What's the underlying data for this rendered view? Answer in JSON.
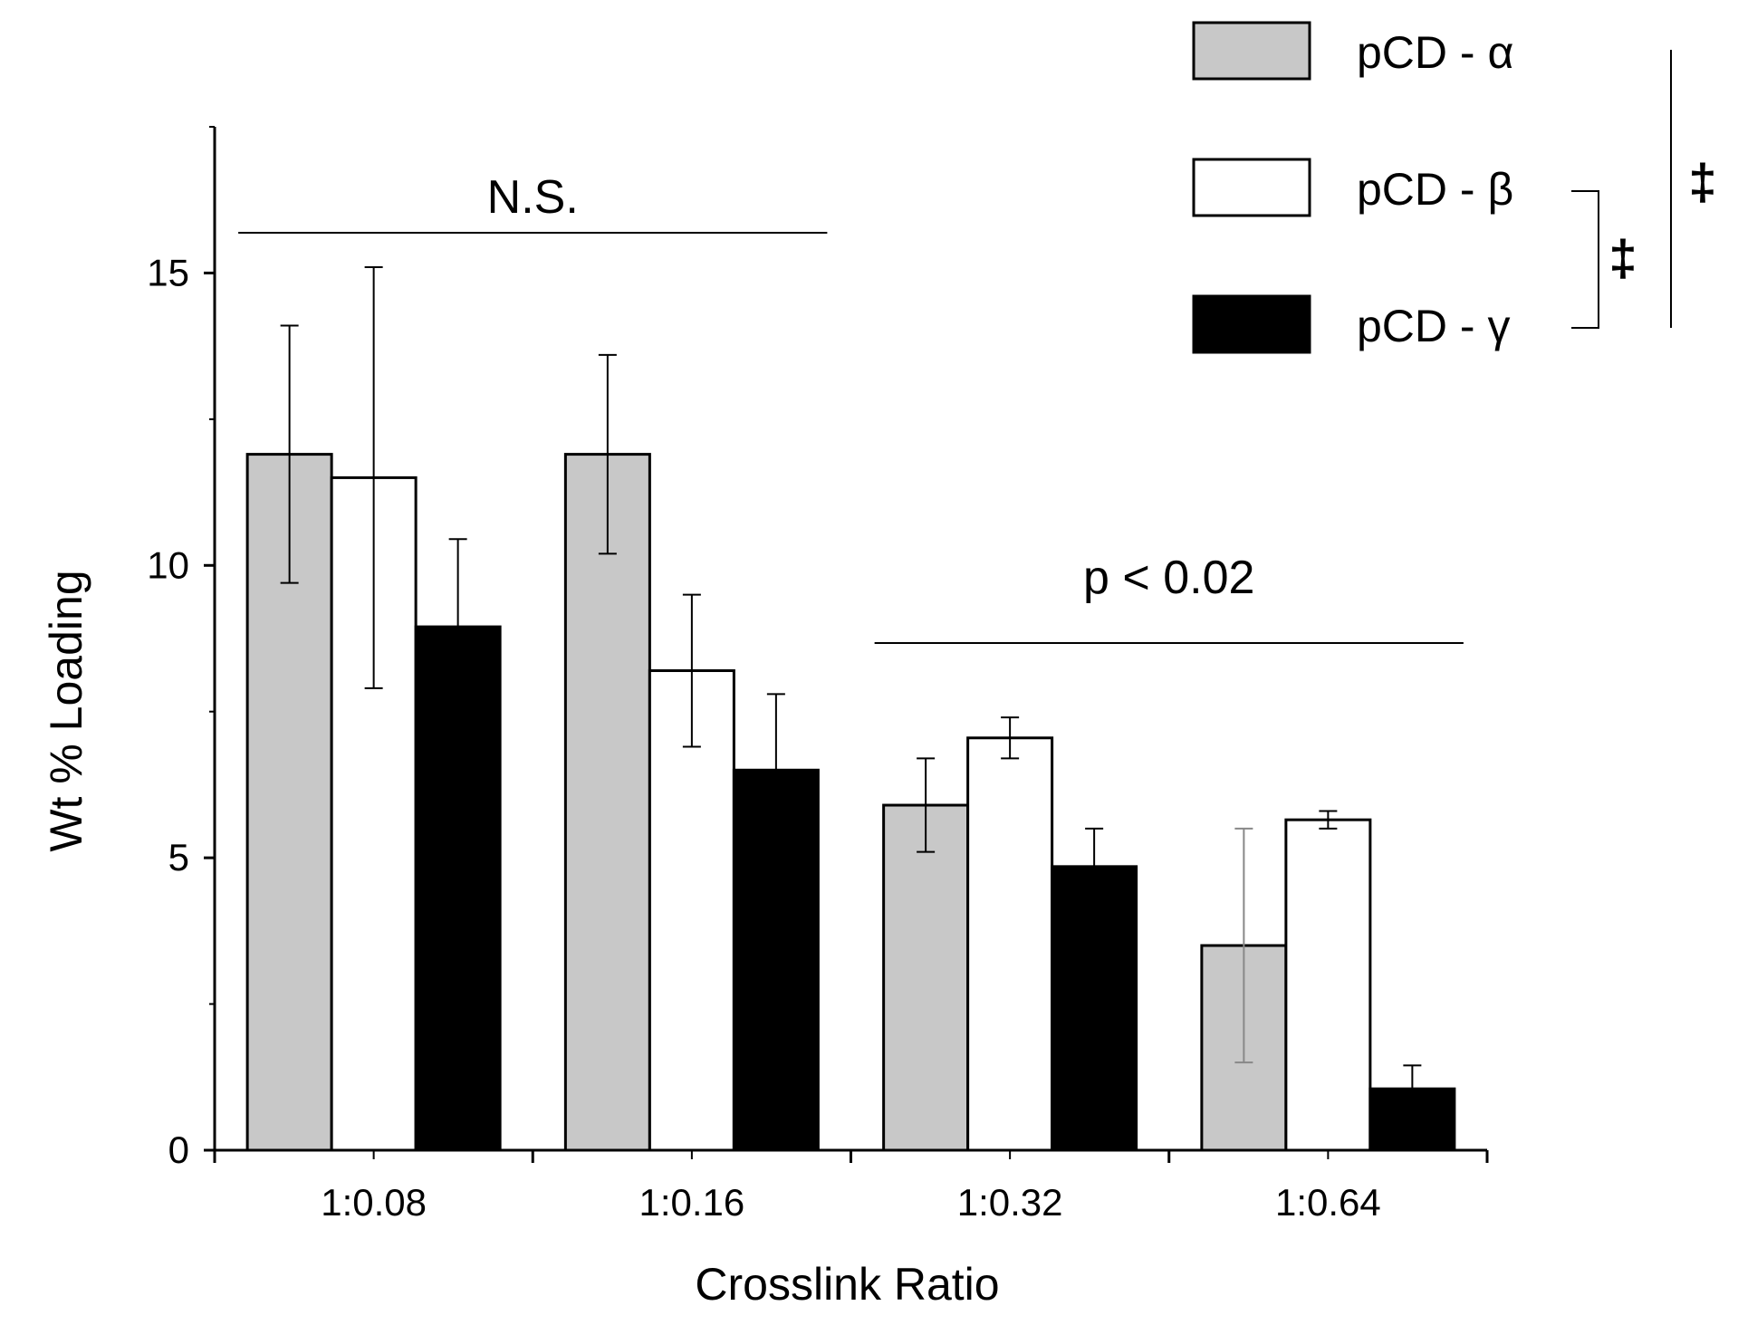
{
  "chart_data": {
    "type": "bar",
    "title": "",
    "xlabel": "Crosslink Ratio",
    "ylabel": "Wt % Loading",
    "ylim": [
      0,
      17.5
    ],
    "yticks": [
      0,
      5,
      10,
      15
    ],
    "categories": [
      "1:0.08",
      "1:0.16",
      "1:0.32",
      "1:0.64"
    ],
    "series": [
      {
        "name": "pCD - α",
        "color": "#c8c8c8",
        "values": [
          11.9,
          11.9,
          5.9,
          3.5
        ],
        "errors": [
          2.2,
          1.7,
          0.8,
          2.0
        ]
      },
      {
        "name": "pCD - β",
        "color": "#ffffff",
        "values": [
          11.5,
          8.2,
          7.05,
          5.65
        ],
        "errors": [
          3.6,
          1.3,
          0.35,
          0.15
        ]
      },
      {
        "name": "pCD - γ",
        "color": "#000000",
        "values": [
          8.95,
          6.5,
          4.85,
          1.05
        ],
        "errors": [
          1.5,
          1.3,
          0.65,
          0.4
        ]
      }
    ],
    "legend": "top-right",
    "annotations": [
      {
        "text": "N.S.",
        "span": [
          "1:0.08",
          "1:0.16"
        ]
      },
      {
        "text": "p < 0.02",
        "span": [
          "1:0.32",
          "1:0.64"
        ]
      }
    ],
    "significance": [
      {
        "symbol": "‡",
        "between": [
          "pCD - β",
          "pCD - γ"
        ]
      },
      {
        "symbol": "‡",
        "between": [
          "pCD - α",
          "pCD - γ"
        ]
      }
    ]
  }
}
